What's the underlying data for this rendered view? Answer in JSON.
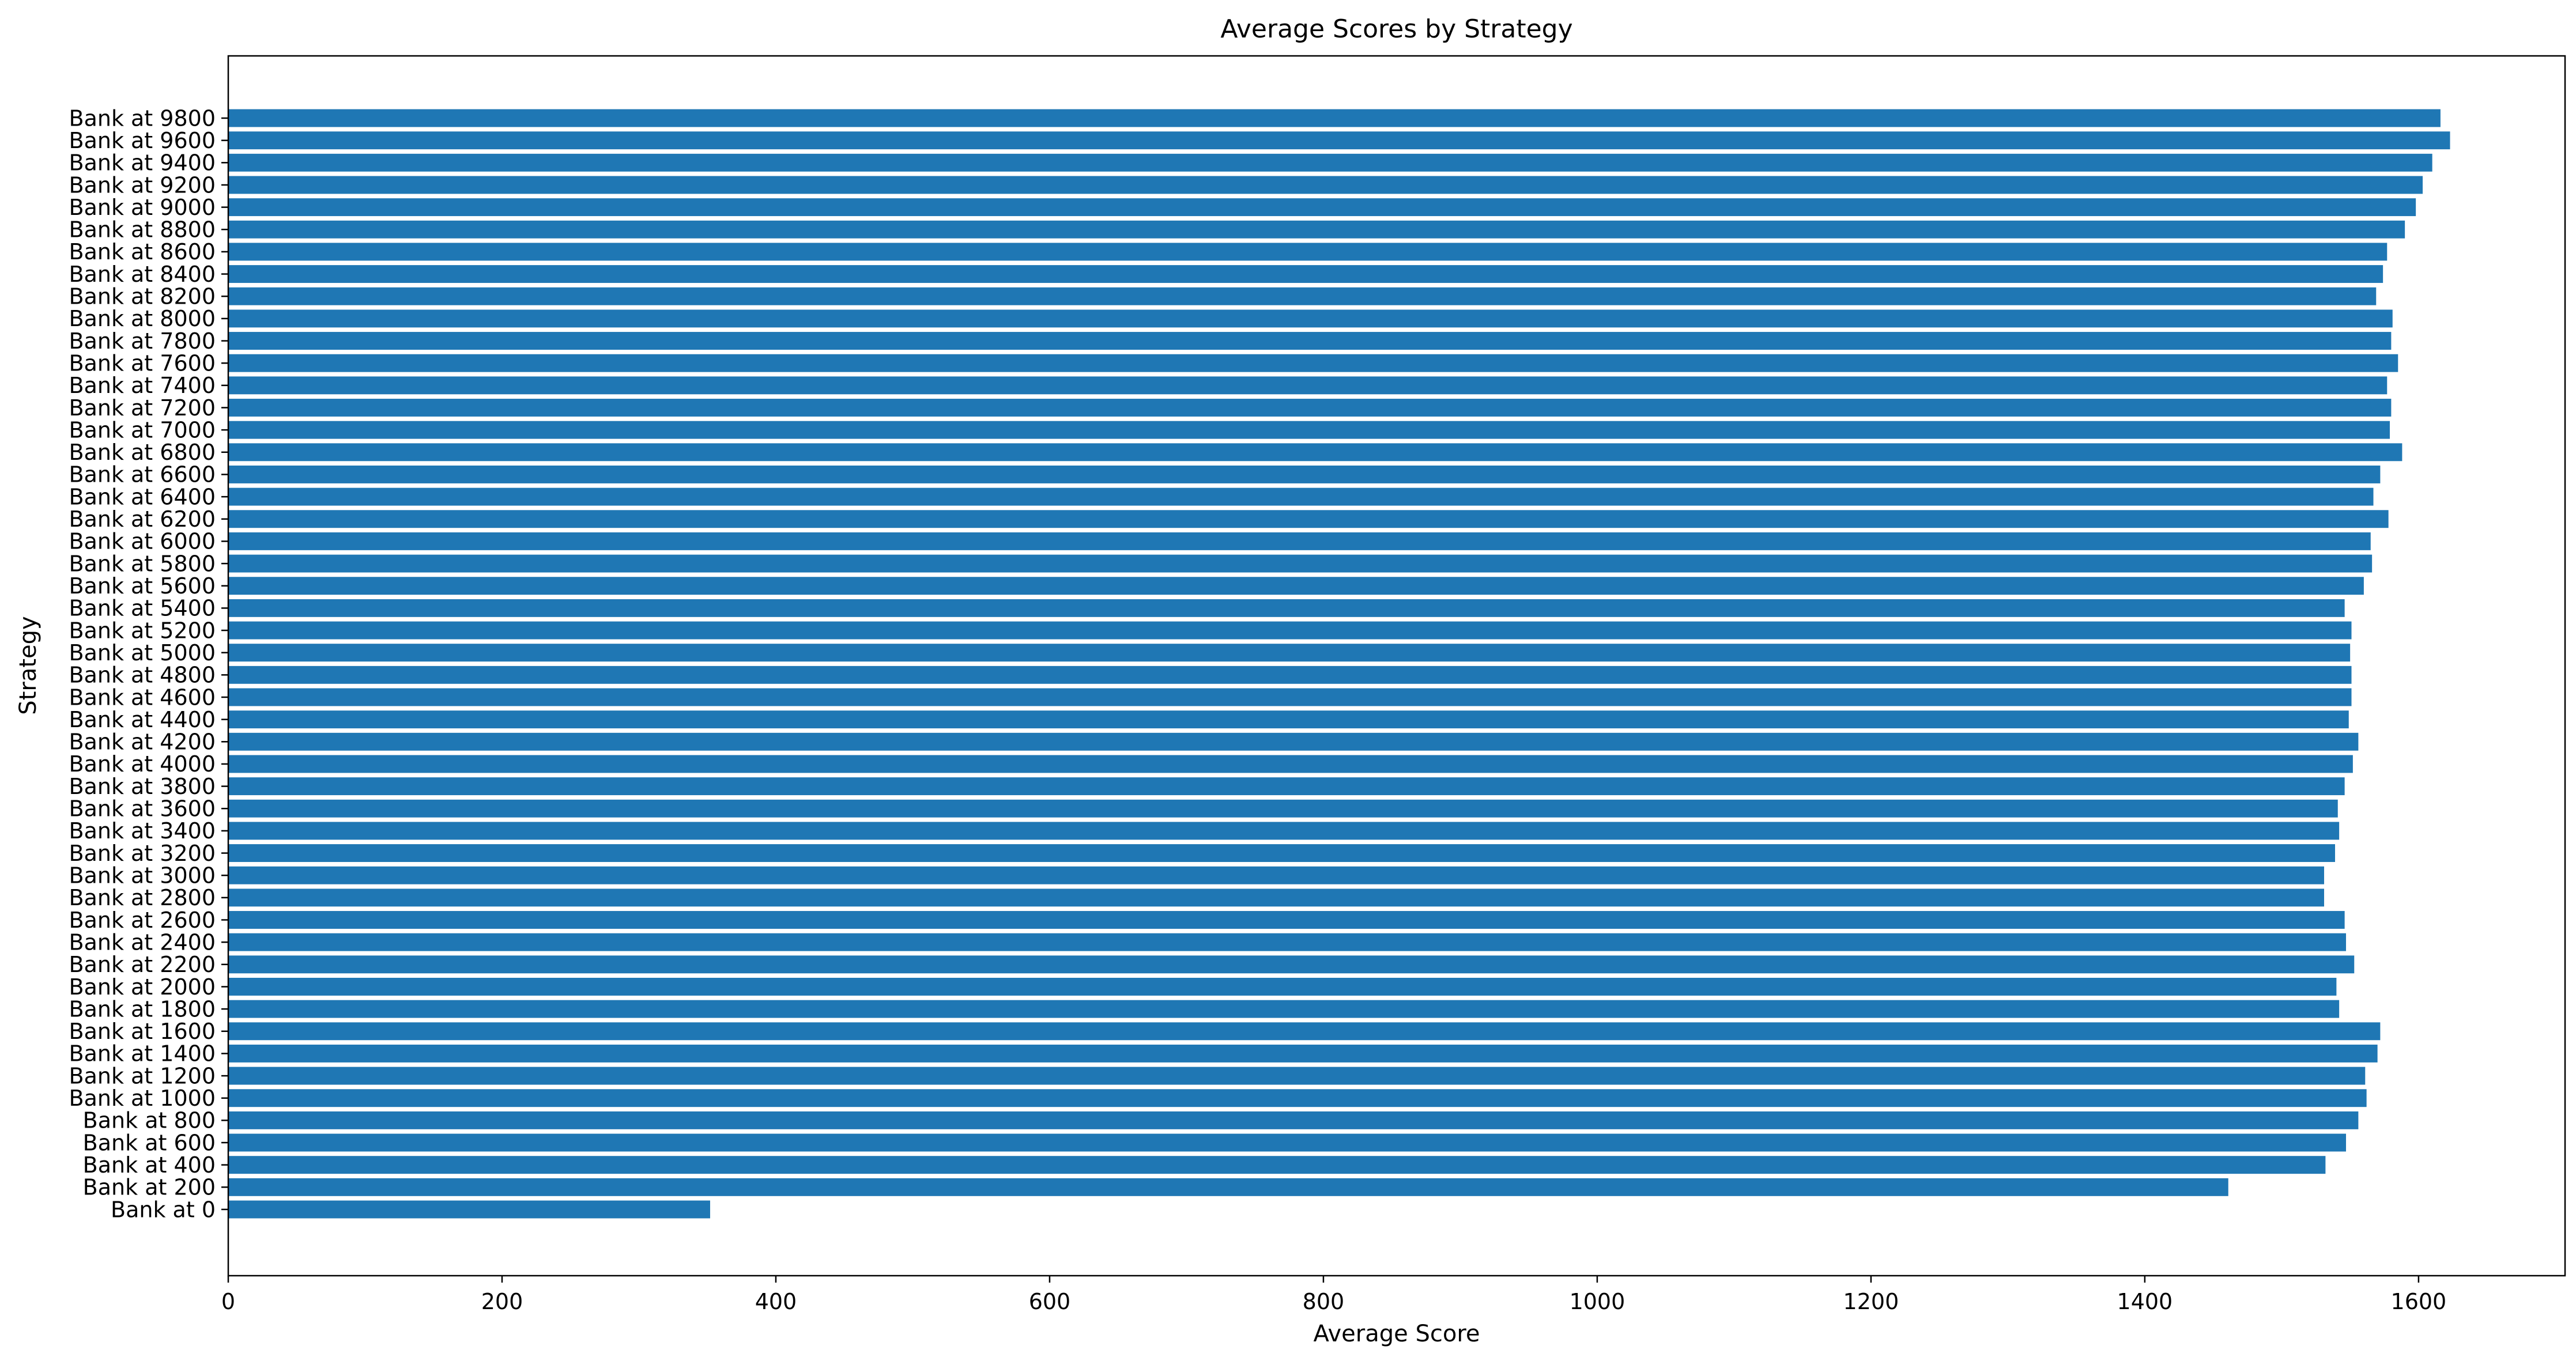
{
  "chart_data": {
    "type": "bar",
    "orientation": "horizontal",
    "title": "Average Scores by Strategy",
    "xlabel": "Average Score",
    "ylabel": "Strategy",
    "xlim": [
      0,
      1707
    ],
    "xticks": [
      0,
      200,
      400,
      600,
      800,
      1000,
      1200,
      1400,
      1600
    ],
    "bar_color": "#1f77b4",
    "grid": false,
    "legend": "none",
    "categories": [
      "Bank at 0",
      "Bank at 200",
      "Bank at 400",
      "Bank at 600",
      "Bank at 800",
      "Bank at 1000",
      "Bank at 1200",
      "Bank at 1400",
      "Bank at 1600",
      "Bank at 1800",
      "Bank at 2000",
      "Bank at 2200",
      "Bank at 2400",
      "Bank at 2600",
      "Bank at 2800",
      "Bank at 3000",
      "Bank at 3200",
      "Bank at 3400",
      "Bank at 3600",
      "Bank at 3800",
      "Bank at 4000",
      "Bank at 4200",
      "Bank at 4400",
      "Bank at 4600",
      "Bank at 4800",
      "Bank at 5000",
      "Bank at 5200",
      "Bank at 5400",
      "Bank at 5600",
      "Bank at 5800",
      "Bank at 6000",
      "Bank at 6200",
      "Bank at 6400",
      "Bank at 6600",
      "Bank at 6800",
      "Bank at 7000",
      "Bank at 7200",
      "Bank at 7400",
      "Bank at 7600",
      "Bank at 7800",
      "Bank at 8000",
      "Bank at 8200",
      "Bank at 8400",
      "Bank at 8600",
      "Bank at 8800",
      "Bank at 9000",
      "Bank at 9200",
      "Bank at 9400",
      "Bank at 9600",
      "Bank at 9800"
    ],
    "values": [
      352,
      1461,
      1532,
      1547,
      1556,
      1562,
      1561,
      1570,
      1572,
      1542,
      1540,
      1553,
      1547,
      1546,
      1531,
      1531,
      1539,
      1542,
      1541,
      1546,
      1552,
      1556,
      1549,
      1551,
      1551,
      1550,
      1551,
      1546,
      1560,
      1566,
      1565,
      1578,
      1567,
      1572,
      1588,
      1579,
      1580,
      1577,
      1585,
      1580,
      1581,
      1569,
      1574,
      1577,
      1590,
      1598,
      1603,
      1610,
      1623,
      1616
    ]
  }
}
